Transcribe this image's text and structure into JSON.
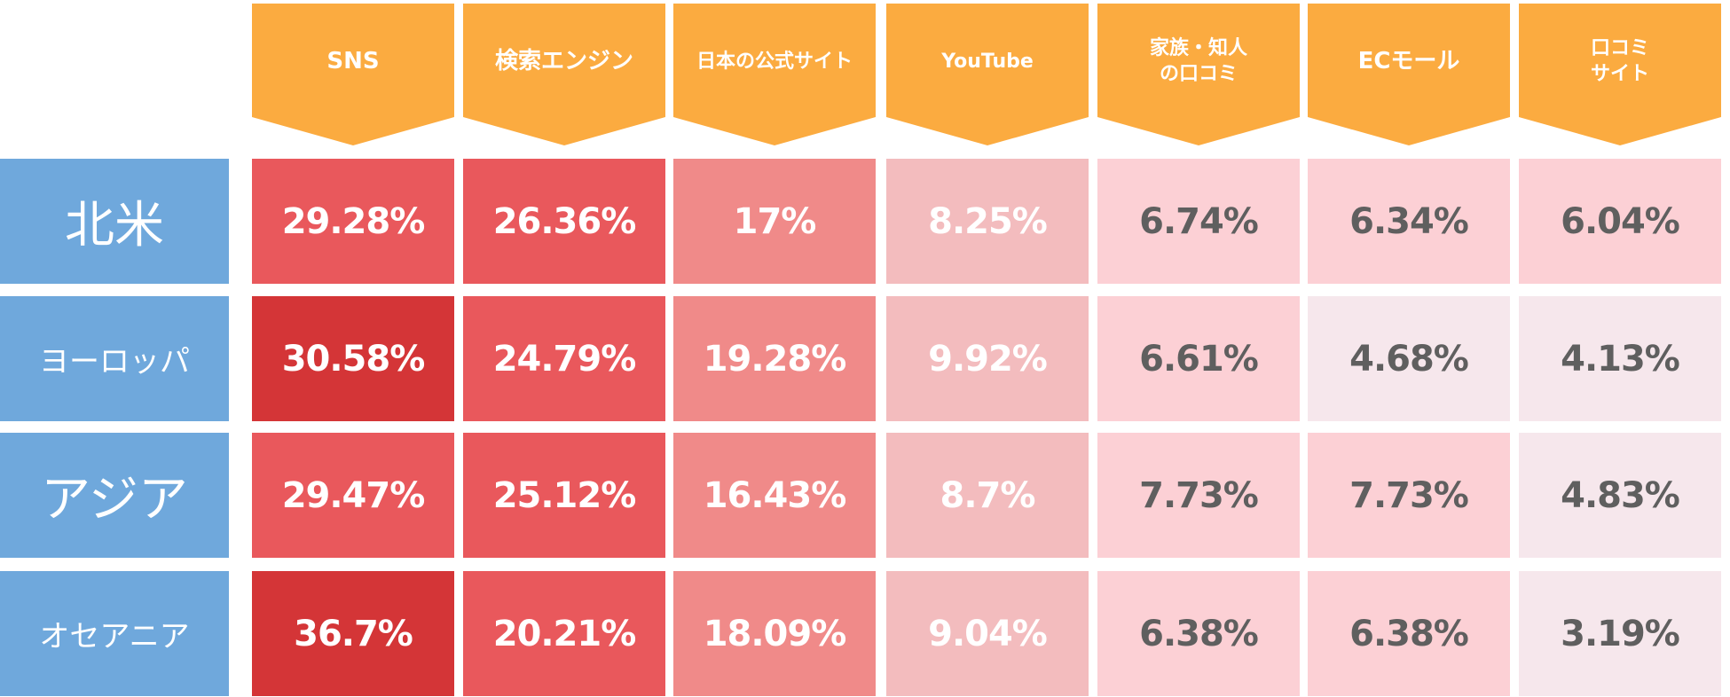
{
  "chart_data": {
    "type": "heatmap",
    "columns": [
      "SNS",
      "検索エンジン",
      "日本の公式サイト",
      "YouTube",
      "家族・知人\nの口コミ",
      "ECモール",
      "口コミ\nサイト"
    ],
    "rows": [
      "北米",
      "ヨーロッパ",
      "アジア",
      "オセアニア"
    ],
    "values": [
      [
        "29.28%",
        "26.36%",
        "17%",
        "8.25%",
        "6.74%",
        "6.34%",
        "6.04%"
      ],
      [
        "30.58%",
        "24.79%",
        "19.28%",
        "9.92%",
        "6.61%",
        "4.68%",
        "4.13%"
      ],
      [
        "29.47%",
        "25.12%",
        "16.43%",
        "8.7%",
        "7.73%",
        "7.73%",
        "4.83%"
      ],
      [
        "36.7%",
        "20.21%",
        "18.09%",
        "9.04%",
        "6.38%",
        "6.38%",
        "3.19%"
      ]
    ]
  },
  "colors": {
    "header_bg": "#fbab40",
    "row_header_bg": "#6fa8dc",
    "dark_text": "#5f5f5f",
    "light_text": "#ffffff",
    "scale": [
      "#f6e7ec",
      "#fcd0d5",
      "#f3bcbe",
      "#f08a89",
      "#e9585c",
      "#d43537"
    ]
  }
}
